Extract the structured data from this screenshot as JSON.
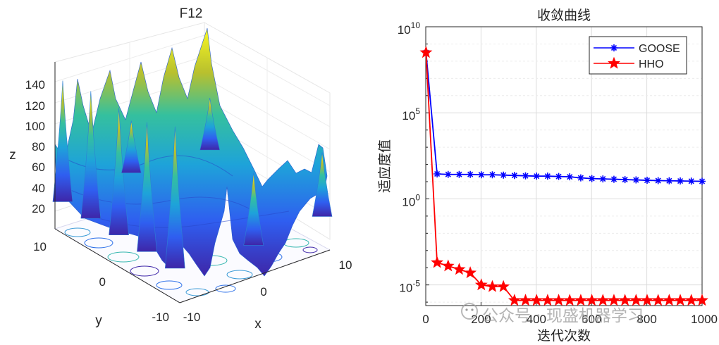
{
  "chart_data": [
    {
      "type": "surface3d",
      "title": "F12",
      "xlabel": "x",
      "ylabel": "y",
      "zlabel": "z",
      "xlim": [
        -10,
        10
      ],
      "ylim": [
        -10,
        10
      ],
      "zlim": [
        0,
        150
      ],
      "xticks": [
        "-10",
        "0",
        "10"
      ],
      "yticks": [
        "10",
        "0",
        "-10"
      ],
      "zticks": [
        "20",
        "40",
        "60",
        "80",
        "100",
        "120",
        "140"
      ],
      "peaks": [
        {
          "x": -9.8,
          "y": 9.0,
          "z": 125
        },
        {
          "x": -9.8,
          "y": 4.5,
          "z": 130
        },
        {
          "x": -9.8,
          "y": 0.0,
          "z": 130
        },
        {
          "x": -9.8,
          "y": -4.5,
          "z": 132
        },
        {
          "x": -9.8,
          "y": -9.0,
          "z": 142
        },
        {
          "x": 9.8,
          "y": 9.0,
          "z": 68
        },
        {
          "x": 9.8,
          "y": -9.0,
          "z": 78
        },
        {
          "x": 0.0,
          "y": -9.8,
          "z": 85
        },
        {
          "x": 0.0,
          "y": 9.8,
          "z": 68
        }
      ]
    },
    {
      "type": "line",
      "title": "收敛曲线",
      "xlabel": "迭代次数",
      "ylabel": "适应度值",
      "yscale": "log",
      "xlim": [
        0,
        1000
      ],
      "ylim_exp": [
        -6.2,
        10
      ],
      "xticks": [
        "0",
        "200",
        "400",
        "600",
        "800",
        "1000"
      ],
      "yticks": [
        {
          "base": "10",
          "exp": "10",
          "value_exp": 10
        },
        {
          "base": "10",
          "exp": "5",
          "value_exp": 5
        },
        {
          "base": "10",
          "exp": "0",
          "value_exp": 0
        },
        {
          "base": "10",
          "exp": "-5",
          "value_exp": -5
        }
      ],
      "grid": true,
      "legend_position": "top-right",
      "x": [
        1,
        41,
        81,
        121,
        161,
        201,
        241,
        281,
        321,
        361,
        401,
        441,
        481,
        521,
        561,
        601,
        641,
        681,
        721,
        761,
        801,
        841,
        881,
        921,
        961,
        1000
      ],
      "series": [
        {
          "name": "GOOSE",
          "color": "#0000ff",
          "marker": "asterisk",
          "log10_values": [
            8.5,
            1.45,
            1.42,
            1.42,
            1.42,
            1.4,
            1.4,
            1.38,
            1.36,
            1.34,
            1.32,
            1.32,
            1.3,
            1.28,
            1.22,
            1.18,
            1.16,
            1.14,
            1.12,
            1.1,
            1.08,
            1.06,
            1.05,
            1.04,
            1.03,
            1.02
          ]
        },
        {
          "name": "HHO",
          "color": "#ff0000",
          "marker": "pentagram",
          "log10_values": [
            8.5,
            -3.7,
            -3.9,
            -4.1,
            -4.3,
            -5.0,
            -5.1,
            -5.1,
            -5.9,
            -5.9,
            -5.9,
            -5.9,
            -5.9,
            -5.9,
            -5.9,
            -5.9,
            -5.9,
            -5.9,
            -5.9,
            -5.9,
            -5.9,
            -5.9,
            -5.9,
            -5.9,
            -5.9,
            -5.9
          ]
        }
      ]
    }
  ],
  "watermark": "公众号 · 现盛机器学习"
}
